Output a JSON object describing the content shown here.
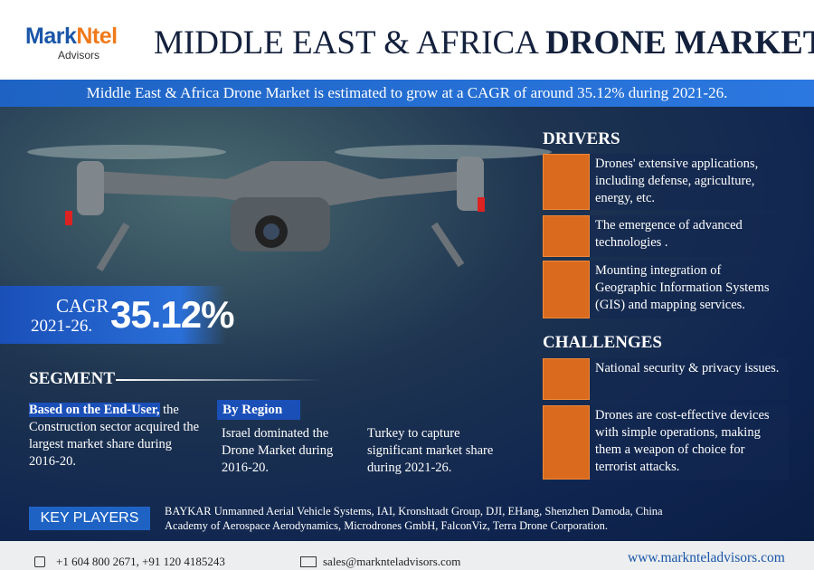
{
  "header": {
    "logo": {
      "brand_a": "Mark",
      "brand_b": "Ntel",
      "sub": "Advisors"
    },
    "title_a": "MIDDLE EAST & AFRICA",
    "title_b": "DRONE MARKET"
  },
  "banner": "Middle East & Africa Drone Market is estimated to grow at a CAGR of around 35.12% during 2021-26.",
  "cagr": {
    "label": "CAGR",
    "period": "2021-26.",
    "value": "35.12%"
  },
  "segment": {
    "heading": "SEGMENT",
    "end_user": {
      "lead": "Based on the End-User,",
      "text": "the Construction sector acquired the largest market share during 2016-20."
    },
    "region": {
      "heading": "By Region",
      "items": [
        "Israel dominated the Drone Market during 2016-20.",
        "Turkey to capture significant market share during 2021-26."
      ]
    }
  },
  "drivers": {
    "heading": "DRIVERS",
    "items": [
      "Drones' extensive applications, including defense, agriculture, energy, etc.",
      "The emergence of advanced technologies .",
      "Mounting integration of Geographic Information Systems (GIS) and mapping services."
    ]
  },
  "challenges": {
    "heading": "CHALLENGES",
    "items": [
      "National security & privacy issues.",
      "Drones are cost-effective devices with simple operations, making them a weapon of choice for terrorist attacks."
    ]
  },
  "key_players": {
    "heading": "KEY PLAYERS",
    "text": "BAYKAR Unmanned Aerial Vehicle Systems, IAI, Kronshtadt Group, DJI, EHang, Shenzhen Damoda, China Academy of Aerospace Aerodynamics, Microdrones GmbH, FalconViz, Terra Drone Corporation."
  },
  "footer": {
    "phone": "+1 604 800 2671, +91 120 4185243",
    "email": "sales@marknteladvisors.com",
    "website": "www.marknteladvisors.com"
  }
}
